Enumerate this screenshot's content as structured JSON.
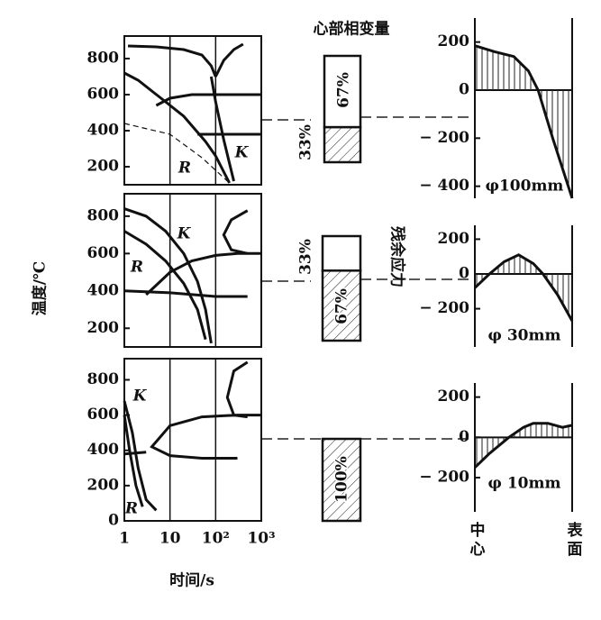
{
  "chart_data": [
    {
      "type": "line",
      "log_x": true,
      "xlim": [
        1,
        1000
      ],
      "xticks": [
        1,
        10,
        100,
        1000
      ],
      "ylim": [
        100,
        925
      ],
      "yticks": [
        200,
        400,
        600,
        800
      ],
      "ylabel": "温度/℃",
      "annotations": [
        "R",
        "K"
      ],
      "series": [
        {
          "x": [
            1.2,
            5,
            20,
            50,
            80,
            100
          ],
          "values": [
            870,
            865,
            850,
            820,
            760,
            700
          ],
          "dashed": false
        },
        {
          "x": [
            100,
            150,
            250,
            400
          ],
          "values": [
            700,
            790,
            850,
            880
          ],
          "dashed": false
        },
        {
          "x": [
            1,
            2,
            4,
            8,
            20,
            60,
            100,
            200
          ],
          "values": [
            720,
            680,
            620,
            560,
            480,
            340,
            260,
            110
          ],
          "dashed": false
        },
        {
          "x": [
            5,
            10,
            30,
            100,
            300,
            1000
          ],
          "values": [
            540,
            580,
            600,
            600,
            600,
            600
          ],
          "dashed": false
        },
        {
          "x": [
            80,
            100,
            150,
            250
          ],
          "values": [
            700,
            560,
            350,
            120
          ],
          "dashed": false
        },
        {
          "x": [
            1,
            10,
            50,
            200
          ],
          "values": [
            440,
            380,
            250,
            110
          ],
          "dashed": true
        },
        {
          "x": [
            40,
            1000
          ],
          "values": [
            380,
            380
          ],
          "dashed": false
        }
      ]
    },
    {
      "type": "line",
      "log_x": true,
      "xlim": [
        1,
        1000
      ],
      "xticks": [
        1,
        10,
        100,
        1000
      ],
      "ylim": [
        100,
        920
      ],
      "yticks": [
        200,
        400,
        600,
        800
      ],
      "annotations": [
        "K",
        "R"
      ],
      "series": [
        {
          "x": [
            500,
            220,
            150,
            220,
            500
          ],
          "values": [
            830,
            780,
            700,
            620,
            600
          ],
          "dashed": false
        },
        {
          "x": [
            1,
            3,
            8,
            20,
            40,
            60,
            80
          ],
          "values": [
            840,
            800,
            720,
            600,
            450,
            300,
            120
          ],
          "dashed": false
        },
        {
          "x": [
            1,
            3,
            8,
            20,
            40,
            60
          ],
          "values": [
            720,
            650,
            560,
            440,
            300,
            140
          ],
          "dashed": false
        },
        {
          "x": [
            3,
            10,
            30,
            100,
            300,
            1000
          ],
          "values": [
            380,
            500,
            560,
            590,
            600,
            600
          ],
          "dashed": false
        },
        {
          "x": [
            1,
            10,
            100,
            500
          ],
          "values": [
            400,
            390,
            370,
            370
          ],
          "dashed": false
        }
      ]
    },
    {
      "type": "line",
      "log_x": true,
      "xlim": [
        1,
        1000
      ],
      "xticks": [
        1,
        10,
        {
          "value": 100,
          "label": "10²"
        },
        {
          "value": 1000,
          "label": "10³"
        }
      ],
      "ylim": [
        0,
        920
      ],
      "yticks": [
        0,
        200,
        400,
        600,
        800
      ],
      "xlabel": "时间/s",
      "annotations": [
        "K",
        "R"
      ],
      "series": [
        {
          "x": [
            500,
            250,
            180,
            250,
            500
          ],
          "values": [
            900,
            850,
            700,
            600,
            590
          ],
          "dashed": false
        },
        {
          "x": [
            1000,
            300,
            50,
            10,
            4,
            10,
            50,
            300
          ],
          "values": [
            600,
            600,
            590,
            540,
            420,
            370,
            355,
            355
          ],
          "dashed": false
        },
        {
          "x": [
            1,
            3
          ],
          "values": [
            380,
            390
          ],
          "dashed": false
        },
        {
          "x": [
            1,
            1.5,
            2,
            3,
            5
          ],
          "values": [
            680,
            500,
            300,
            120,
            60
          ],
          "dashed": false
        },
        {
          "x": [
            1,
            1.3,
            1.8,
            2.5
          ],
          "values": [
            600,
            400,
            200,
            80
          ],
          "dashed": false
        }
      ]
    },
    {
      "type": "stacked-bar",
      "title": "心部相变量",
      "ylim": [
        0,
        100
      ],
      "values": [
        33,
        67
      ],
      "value_labels": [
        "33%",
        "67%"
      ],
      "hatched": [
        true,
        false
      ]
    },
    {
      "type": "stacked-bar",
      "ylim": [
        0,
        100
      ],
      "values": [
        67,
        33
      ],
      "value_labels": [
        "67%",
        "33%"
      ],
      "hatched": [
        true,
        false
      ]
    },
    {
      "type": "stacked-bar",
      "ylim": [
        0,
        100
      ],
      "values": [
        100
      ],
      "value_labels": [
        "100%"
      ],
      "hatched": [
        true
      ]
    },
    {
      "type": "area",
      "xlim": [
        0,
        1
      ],
      "ylim": [
        -450,
        300
      ],
      "yticks": [
        {
          "value": -400,
          "label": "− 400"
        },
        {
          "value": -200,
          "label": "− 200"
        },
        0,
        200
      ],
      "annotation": "φ100mm",
      "x": [
        0,
        0.2,
        0.4,
        0.55,
        0.65,
        0.8,
        1
      ],
      "values": [
        185,
        160,
        140,
        80,
        0,
        -200,
        -450
      ]
    },
    {
      "type": "area",
      "xlim": [
        0,
        1
      ],
      "ylim": [
        -420,
        280
      ],
      "yticks": [
        {
          "value": -200,
          "label": "− 200"
        },
        0,
        200
      ],
      "annotation": "φ 30mm",
      "ylabel": "残余应力",
      "x": [
        0,
        0.15,
        0.3,
        0.45,
        0.6,
        0.7,
        0.85,
        1
      ],
      "values": [
        -80,
        0,
        70,
        110,
        60,
        0,
        -120,
        -270
      ]
    },
    {
      "type": "area",
      "xlim": [
        0,
        1
      ],
      "ylim": [
        -370,
        270
      ],
      "yticks": [
        {
          "value": -200,
          "label": "− 200"
        },
        0,
        200
      ],
      "annotation": "φ 10mm",
      "xlabels": [
        "中心",
        "表面"
      ],
      "x": [
        0,
        0.15,
        0.35,
        0.5,
        0.6,
        0.75,
        0.9,
        1
      ],
      "values": [
        -150,
        -80,
        0,
        50,
        70,
        70,
        50,
        60
      ]
    }
  ]
}
